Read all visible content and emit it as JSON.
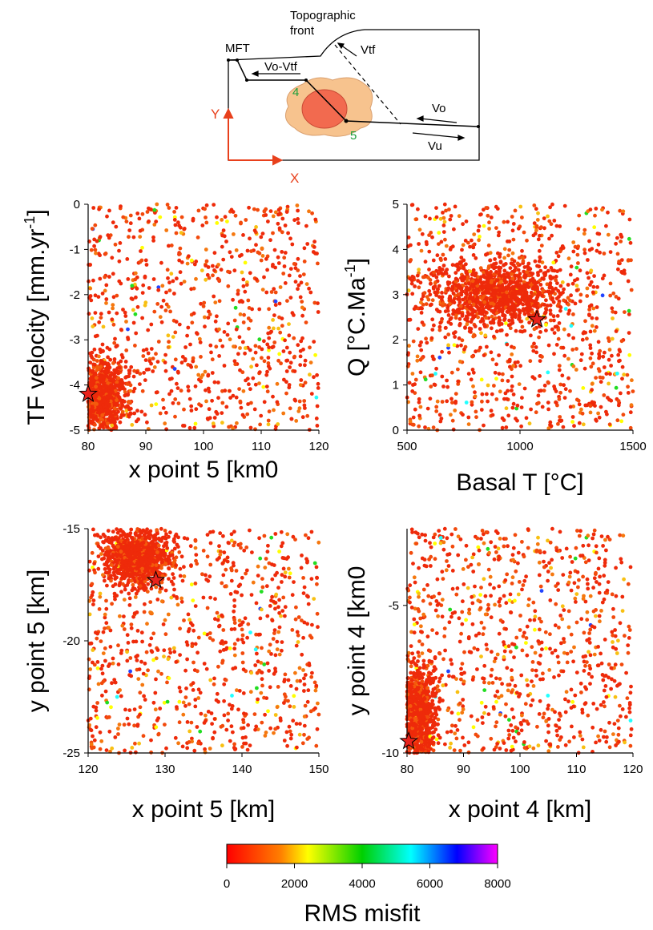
{
  "schematic": {
    "label_topographic": "Topographic",
    "label_front": "front",
    "label_mft": "MFT",
    "label_vo_vtf": "Vo-Vtf",
    "label_vtf": "Vtf",
    "label_vo": "Vo",
    "label_vu": "Vu",
    "label_point4": "4",
    "label_point5": "5",
    "axis_x": "X",
    "axis_y": "Y",
    "colors": {
      "body_outer": "#f7c38e",
      "body_inner": "#f26a4f",
      "axes": "#e8401c",
      "point_labels": "#1a9e3a"
    }
  },
  "chart_data": [
    {
      "type": "scatter",
      "title": "",
      "xlabel": "x point 5 [km0",
      "ylabel": "TF velocity [mm.yr⁻¹]",
      "ylabel_base": "TF velocity [mm.yr",
      "ylabel_sup": "-1",
      "ylabel_end": "]",
      "xlim": [
        80,
        120
      ],
      "ylim": [
        -5,
        0
      ],
      "xticks": [
        "80",
        "90",
        "100",
        "110",
        "120"
      ],
      "yticks": [
        "-5",
        "-4",
        "-3",
        "-2",
        "-1",
        "0"
      ],
      "best_fit": {
        "x": 80,
        "y": -4.2
      },
      "cluster": {
        "x": 82,
        "y": -4.3,
        "sx": 2.2,
        "sy": 0.4
      }
    },
    {
      "type": "scatter",
      "title": "",
      "xlabel": "Basal T [°C]",
      "ylabel": "Q [°C.Ma⁻¹]",
      "ylabel_base": "Q [°C.Ma",
      "ylabel_sup": "-1",
      "ylabel_end": "]",
      "xlim": [
        500,
        1500
      ],
      "ylim": [
        0,
        5
      ],
      "xticks": [
        "500",
        "1000",
        "1500"
      ],
      "yticks": [
        "0",
        "1",
        "2",
        "3",
        "4",
        "5"
      ],
      "best_fit": {
        "x": 1075,
        "y": 2.45
      },
      "cluster": {
        "x": 900,
        "y": 3.0,
        "sx": 140,
        "sy": 0.35
      }
    },
    {
      "type": "scatter",
      "title": "",
      "xlabel": "x point 5 [km]",
      "ylabel": "y point 5 [km]",
      "xlim": [
        120,
        150
      ],
      "ylim": [
        -25,
        -15
      ],
      "xticks": [
        "120",
        "130",
        "140",
        "150"
      ],
      "yticks": [
        "-25",
        "-20",
        "-15"
      ],
      "best_fit": {
        "x": 128.8,
        "y": -17.3
      },
      "cluster": {
        "x": 126.5,
        "y": -16.3,
        "sx": 2.0,
        "sy": 0.6
      }
    },
    {
      "type": "scatter",
      "title": "",
      "xlabel": "x point 4 [km]",
      "ylabel": "y point 4 [km0",
      "xlim": [
        80,
        120
      ],
      "ylim": [
        -10,
        -2.4
      ],
      "xticks": [
        "80",
        "90",
        "100",
        "110",
        "120"
      ],
      "yticks": [
        "-10",
        "-5"
      ],
      "best_fit": {
        "x": 80.3,
        "y": -9.6
      },
      "cluster": {
        "x": 81.5,
        "y": -8.7,
        "sx": 1.8,
        "sy": 0.8
      }
    }
  ],
  "colorbar": {
    "label": "RMS misfit",
    "ticks": [
      "0",
      "2000",
      "4000",
      "6000",
      "8000"
    ],
    "range": [
      0,
      8000
    ],
    "stops": [
      "#ff0000",
      "#ff8000",
      "#ffff00",
      "#00d000",
      "#00ffff",
      "#0000ff",
      "#ff00ff"
    ]
  }
}
